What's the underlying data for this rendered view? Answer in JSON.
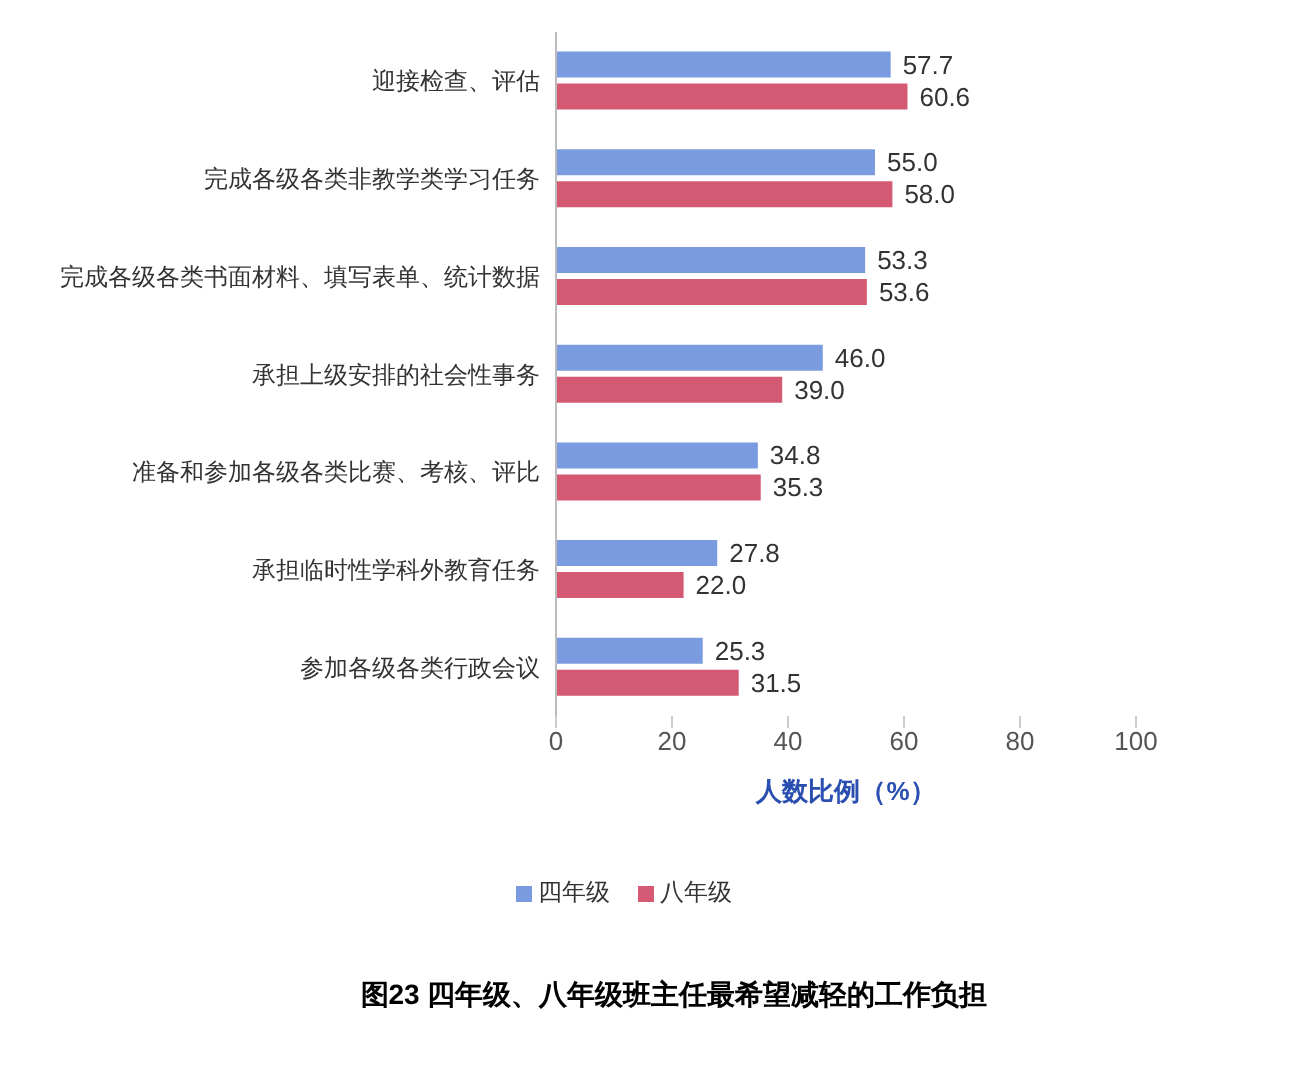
{
  "chart_data": {
    "type": "bar",
    "orientation": "horizontal",
    "title": "图23 四年级、八年级班主任最希望减轻的工作负担",
    "xlabel": "人数比例（%）",
    "categories": [
      "迎接检查、评估",
      "完成各级各类非教学类学习任务",
      "完成各级各类书面材料、填写表单、统计数据",
      "承担上级安排的社会性事务",
      "准备和参加各级各类比赛、考核、评比",
      "承担临时性学科外教育任务",
      "参加各级各类行政会议"
    ],
    "series": [
      {
        "name": "四年级",
        "color": "#7b9be0",
        "values": [
          57.7,
          55.0,
          53.3,
          46.0,
          34.8,
          27.8,
          25.3
        ]
      },
      {
        "name": "八年级",
        "color": "#d45a74",
        "values": [
          60.6,
          58.0,
          53.6,
          39.0,
          35.3,
          22.0,
          31.5
        ]
      }
    ],
    "value_labels": [
      [
        "57.7",
        "55.0",
        "53.3",
        "46.0",
        "34.8",
        "27.8",
        "25.3"
      ],
      [
        "60.6",
        "58.0",
        "53.6",
        "39.0",
        "35.3",
        "22.0",
        "31.5"
      ]
    ],
    "xlim": [
      0,
      100
    ],
    "xticks": [
      0,
      20,
      40,
      60,
      80,
      100
    ],
    "grid": false,
    "legend": "bottom"
  }
}
